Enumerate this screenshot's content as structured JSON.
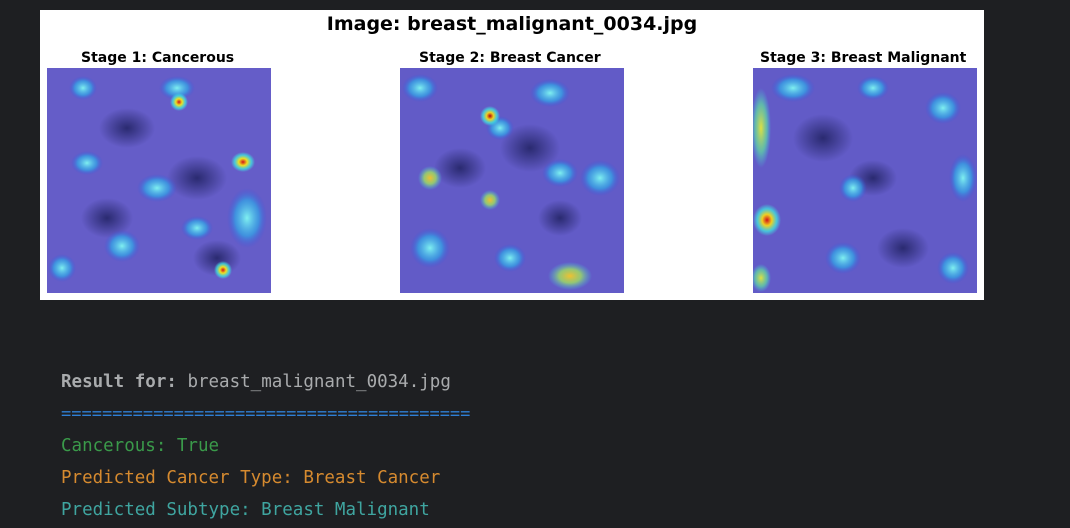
{
  "figure": {
    "title": "Image: breast_malignant_0034.jpg",
    "stages": [
      {
        "title": "Stage 1: Cancerous"
      },
      {
        "title": "Stage 2: Breast Cancer"
      },
      {
        "title": "Stage 3: Breast Malignant"
      }
    ]
  },
  "output": {
    "result_label": "Result for:",
    "result_value": "breast_malignant_0034.jpg",
    "separator": "========================================",
    "cancerous": "Cancerous: True",
    "cancer_type": "Predicted Cancer Type: Breast Cancer",
    "subtype": "Predicted Subtype: Breast Malignant"
  },
  "colors": {
    "background": "#1e1f22",
    "separator": "#2f7fd6",
    "cancerous": "#3a9a4a",
    "cancer_type": "#d68a2f",
    "subtype": "#3fa5a0"
  }
}
